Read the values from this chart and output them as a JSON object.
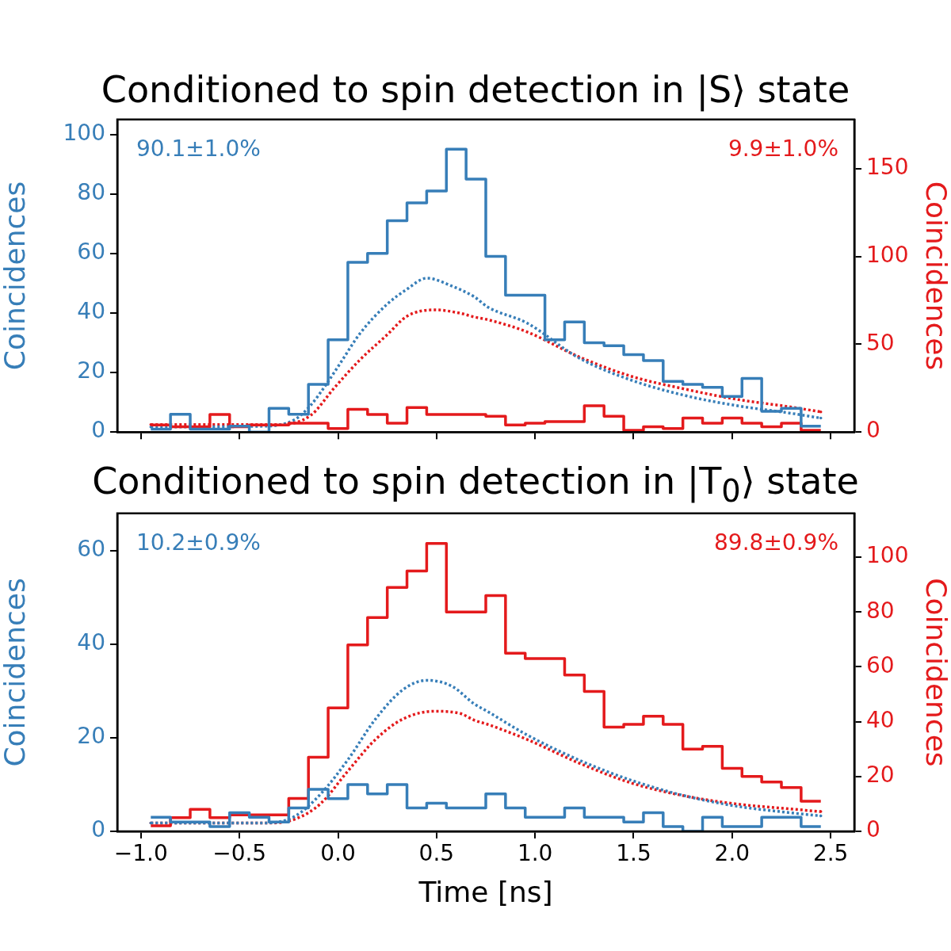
{
  "chart_data": [
    {
      "type": "histogram",
      "title": "Conditioned to spin detection in |S⟩ state",
      "ylabel": "Coincidences",
      "y2label": "Coincidences",
      "tick_labels": "y",
      "bins": [
        -0.95,
        -0.85,
        -0.75,
        -0.65,
        -0.55,
        -0.45,
        -0.35,
        -0.25,
        -0.15,
        -0.05,
        0.05,
        0.15,
        0.25,
        0.35,
        0.45,
        0.55,
        0.65,
        0.75,
        0.85,
        0.95,
        1.05,
        1.15,
        1.25,
        1.35,
        1.45,
        1.55,
        1.65,
        1.75,
        1.85,
        1.95,
        2.05,
        2.15,
        2.25,
        2.35,
        2.45
      ],
      "series": [
        {
          "color": "#377eb8",
          "axis": "y",
          "values": [
            1,
            6,
            1,
            1,
            2,
            0,
            8,
            6,
            16,
            31,
            57,
            60,
            71,
            77,
            81,
            95,
            85,
            59,
            46,
            46,
            31,
            37,
            30,
            29,
            26,
            24,
            17,
            16,
            15,
            12,
            18,
            7,
            8,
            2
          ]
        },
        {
          "color": "#e41a1c",
          "axis": "y2",
          "values": [
            4,
            3,
            3,
            10,
            3,
            4,
            4,
            5,
            5,
            2,
            13,
            10,
            5,
            14,
            10,
            10,
            10,
            9,
            4,
            5,
            6,
            6,
            15,
            9,
            1,
            3,
            2,
            8,
            5,
            8,
            5,
            3,
            5,
            1
          ]
        },
        {
          "type": "line",
          "color": "#377eb8",
          "axis": "y",
          "line_style": "dotted",
          "x": [
            -0.95,
            -0.36,
            -0.22,
            -0.14,
            -0.06,
            0.02,
            0.11,
            0.25,
            0.35,
            0.45,
            0.58,
            0.69,
            0.76,
            0.96,
            1.22,
            1.49,
            1.76,
            2.02,
            2.29,
            2.45
          ],
          "values": [
            1.7,
            2,
            4.2,
            8.9,
            16,
            24,
            33,
            43,
            48,
            51.7,
            49,
            45.5,
            42,
            36.6,
            25,
            17.4,
            12.3,
            8.9,
            6.4,
            4.7
          ]
        },
        {
          "type": "line",
          "color": "#e41a1c",
          "axis": "y2",
          "line_style": "dotted",
          "x": [
            -0.95,
            -0.3,
            -0.14,
            -0.02,
            0.11,
            0.25,
            0.35,
            0.49,
            0.62,
            0.69,
            0.76,
            0.96,
            1.22,
            1.49,
            1.76,
            2.02,
            2.29,
            2.45
          ],
          "values": [
            4.3,
            4.3,
            9.4,
            25,
            41,
            55.5,
            66,
            69.6,
            67.7,
            65.6,
            64,
            57,
            43,
            31.7,
            24.5,
            18.7,
            14.4,
            11.5
          ]
        }
      ],
      "xlim": [
        -1.12,
        2.62
      ],
      "xticks": [
        {
          "value": -1,
          "label": null
        },
        {
          "value": -0.5,
          "label": null
        },
        {
          "value": 0,
          "label": null
        },
        {
          "value": 0.5,
          "label": null
        },
        {
          "value": 1,
          "label": null
        },
        {
          "value": 1.5,
          "label": null
        },
        {
          "value": 2,
          "label": null
        },
        {
          "value": 2.5,
          "label": null
        }
      ],
      "ylim": [
        0,
        105
      ],
      "yticks": [
        0,
        20,
        40,
        60,
        80,
        100
      ],
      "y2lim": [
        0,
        178
      ],
      "y2ticks": [
        0,
        50,
        100,
        150
      ],
      "annotations": [
        "90.1±1.0%",
        "9.9±1.0%"
      ]
    },
    {
      "type": "histogram",
      "title": "Conditioned to spin detection in |T$_{0}$⟩ state",
      "xlabel": "Time [ns]",
      "ylabel": "Coincidences",
      "y2label": "Coincidences",
      "bins": [
        -0.95,
        -0.85,
        -0.75,
        -0.65,
        -0.55,
        -0.45,
        -0.35,
        -0.25,
        -0.15,
        -0.05,
        0.05,
        0.15,
        0.25,
        0.35,
        0.45,
        0.55,
        0.65,
        0.75,
        0.85,
        0.95,
        1.05,
        1.15,
        1.25,
        1.35,
        1.45,
        1.55,
        1.65,
        1.75,
        1.85,
        1.95,
        2.05,
        2.15,
        2.25,
        2.35,
        2.45
      ],
      "series": [
        {
          "color": "#377eb8",
          "axis": "y",
          "values": [
            3,
            2,
            2,
            1,
            4,
            3,
            2,
            5,
            9,
            7,
            10,
            8,
            10,
            5,
            6,
            5,
            5,
            8,
            5,
            3,
            3,
            5,
            3,
            3,
            2,
            4,
            1,
            0,
            3,
            1,
            1,
            3,
            3,
            1
          ]
        },
        {
          "color": "#e41a1c",
          "axis": "y2",
          "values": [
            2,
            5,
            8,
            5,
            6,
            6,
            6,
            12,
            27,
            45,
            68,
            78,
            89,
            95,
            105,
            80,
            80,
            86,
            65,
            63,
            63,
            57,
            51,
            38,
            39,
            42,
            39,
            30,
            31,
            23,
            20,
            18,
            16,
            11
          ]
        },
        {
          "type": "line",
          "color": "#377eb8",
          "axis": "y",
          "line_style": "dotted",
          "x": [
            -0.95,
            -0.36,
            -0.22,
            -0.09,
            0.05,
            0.19,
            0.33,
            0.45,
            0.58,
            0.69,
            0.76,
            0.96,
            1.22,
            1.49,
            1.76,
            2.02,
            2.29,
            2.45
          ],
          "values": [
            1.8,
            1.8,
            3.2,
            7.9,
            15.3,
            24,
            30.3,
            32.3,
            31,
            27.3,
            25.6,
            20.6,
            15.3,
            10.9,
            7.6,
            5.4,
            4,
            3.3
          ]
        },
        {
          "type": "line",
          "color": "#e41a1c",
          "axis": "y2",
          "line_style": "dotted",
          "x": [
            -0.95,
            -0.36,
            -0.22,
            -0.09,
            0.05,
            0.19,
            0.33,
            0.49,
            0.62,
            0.69,
            0.76,
            0.96,
            1.22,
            1.49,
            1.76,
            2.02,
            2.29,
            2.45
          ],
          "values": [
            3,
            3,
            4.4,
            10,
            22,
            33.5,
            41,
            43.8,
            43,
            40.6,
            39,
            33.5,
            25,
            17.6,
            12.9,
            10,
            8.2,
            7.2
          ]
        }
      ],
      "xlim": [
        -1.12,
        2.62
      ],
      "xticks": [
        {
          "value": -1,
          "label": "−1.0"
        },
        {
          "value": -0.5,
          "label": "−0.5"
        },
        {
          "value": 0,
          "label": "0.0"
        },
        {
          "value": 0.5,
          "label": "0.5"
        },
        {
          "value": 1,
          "label": "1.0"
        },
        {
          "value": 1.5,
          "label": "1.5"
        },
        {
          "value": 2,
          "label": "2.0"
        },
        {
          "value": 2.5,
          "label": "2.5"
        }
      ],
      "ylim": [
        0,
        68
      ],
      "yticks": [
        0,
        20,
        40,
        60
      ],
      "y2lim": [
        0,
        116
      ],
      "y2ticks": [
        0,
        20,
        40,
        60,
        80,
        100
      ],
      "annotations": [
        "10.2±0.9%",
        "89.8±0.9%"
      ]
    }
  ]
}
